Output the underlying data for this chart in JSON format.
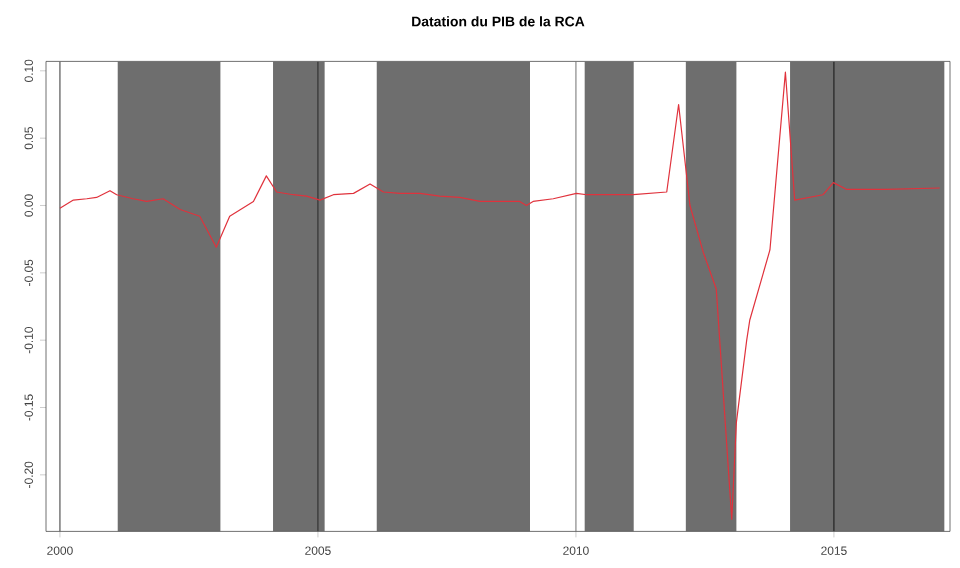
{
  "chart_data": {
    "type": "line",
    "title": "Datation du PIB de la RCA",
    "x": [
      2000.0,
      2000.26,
      2000.52,
      2000.71,
      2000.97,
      2001.1,
      2001.42,
      2001.68,
      2002.0,
      2002.33,
      2002.71,
      2003.03,
      2003.29,
      2003.75,
      2004.0,
      2004.2,
      2004.52,
      2004.78,
      2005.04,
      2005.3,
      2005.69,
      2006.01,
      2006.27,
      2006.59,
      2006.98,
      2007.36,
      2007.75,
      2008.14,
      2008.91,
      2009.04,
      2009.17,
      2009.56,
      2010.01,
      2010.21,
      2011.11,
      2011.76,
      2011.99,
      2012.21,
      2012.47,
      2012.72,
      2013.02,
      2013.11,
      2013.31,
      2013.37,
      2013.76,
      2014.06,
      2014.24,
      2014.79,
      2014.99,
      2015.24,
      2016.0,
      2017.05
    ],
    "series": [
      {
        "color": "#e0323c",
        "values": [
          -0.002,
          0.004,
          0.005,
          0.006,
          0.011,
          0.008,
          0.005,
          0.003,
          0.005,
          -0.003,
          -0.008,
          -0.031,
          -0.008,
          0.003,
          0.022,
          0.01,
          0.008,
          0.007,
          0.004,
          0.008,
          0.009,
          0.016,
          0.01,
          0.009,
          0.009,
          0.007,
          0.006,
          0.003,
          0.003,
          0.0,
          0.003,
          0.005,
          0.009,
          0.008,
          0.008,
          0.01,
          0.075,
          0.0,
          -0.035,
          -0.062,
          -0.233,
          -0.161,
          -0.1,
          -0.085,
          -0.033,
          0.099,
          0.004,
          0.008,
          0.017,
          0.012,
          0.012,
          0.013
        ]
      }
    ],
    "xlim": [
      1999.73,
      2017.25
    ],
    "ylim": [
      -0.242,
      0.107
    ],
    "xticks": [
      2000,
      2005,
      2010,
      2015
    ],
    "yticks": [
      {
        "value": -0.2,
        "label": "-0.20"
      },
      {
        "value": -0.15,
        "label": "-0.15"
      },
      {
        "value": -0.1,
        "label": "-0.10"
      },
      {
        "value": -0.05,
        "label": "-0.05"
      },
      {
        "value": 0,
        "label": "0.00"
      },
      {
        "value": 0.05,
        "label": "0.05"
      },
      {
        "value": 0.1,
        "label": "0.10"
      }
    ],
    "bands": [
      {
        "axis": "x",
        "from": 2001.12,
        "to": 2003.11,
        "color": "#6e6e6e"
      },
      {
        "axis": "x",
        "from": 2004.13,
        "to": 2005.13,
        "color": "#6e6e6e"
      },
      {
        "axis": "x",
        "from": 2006.14,
        "to": 2009.11,
        "color": "#6e6e6e"
      },
      {
        "axis": "x",
        "from": 2010.17,
        "to": 2011.12,
        "color": "#6e6e6e"
      },
      {
        "axis": "x",
        "from": 2012.13,
        "to": 2013.11,
        "color": "#6e6e6e"
      },
      {
        "axis": "x",
        "from": 2014.15,
        "to": 2017.14,
        "color": "#6e6e6e"
      }
    ],
    "ref_lines": [
      {
        "axis": "x",
        "value": 2000,
        "color": "#555555"
      },
      {
        "axis": "x",
        "value": 2005,
        "color": "#333333"
      },
      {
        "axis": "x",
        "value": 2010,
        "color": "#888888"
      },
      {
        "axis": "x",
        "value": 2015,
        "color": "#222222"
      }
    ],
    "grid": false
  }
}
